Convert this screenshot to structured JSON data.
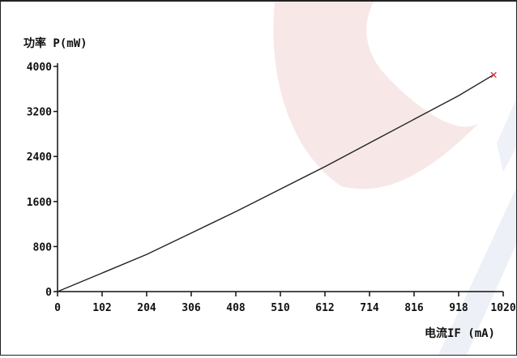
{
  "chart_data": {
    "type": "line",
    "ylabel": "功率 P(mW)",
    "xlabel": "电流IF (mA)",
    "xlim": [
      0,
      1020
    ],
    "ylim": [
      0,
      4000
    ],
    "x_ticks": [
      0,
      102,
      204,
      306,
      408,
      510,
      612,
      714,
      816,
      918,
      1020
    ],
    "y_ticks": [
      0,
      800,
      1600,
      2400,
      3200,
      4000
    ],
    "series": [
      {
        "x": [
          0,
          102,
          204,
          306,
          408,
          510,
          612,
          714,
          816,
          918,
          1000
        ],
        "y": [
          0,
          330,
          660,
          1040,
          1420,
          1820,
          2220,
          2640,
          3060,
          3480,
          3860
        ]
      }
    ],
    "end_marker": {
      "x": 1000,
      "y": 3860,
      "symbol": "×",
      "color": "#e03030"
    },
    "grid": false,
    "line_color": "#222222",
    "watermark_colors": [
      "#f6e6e6",
      "#eceff7"
    ]
  }
}
